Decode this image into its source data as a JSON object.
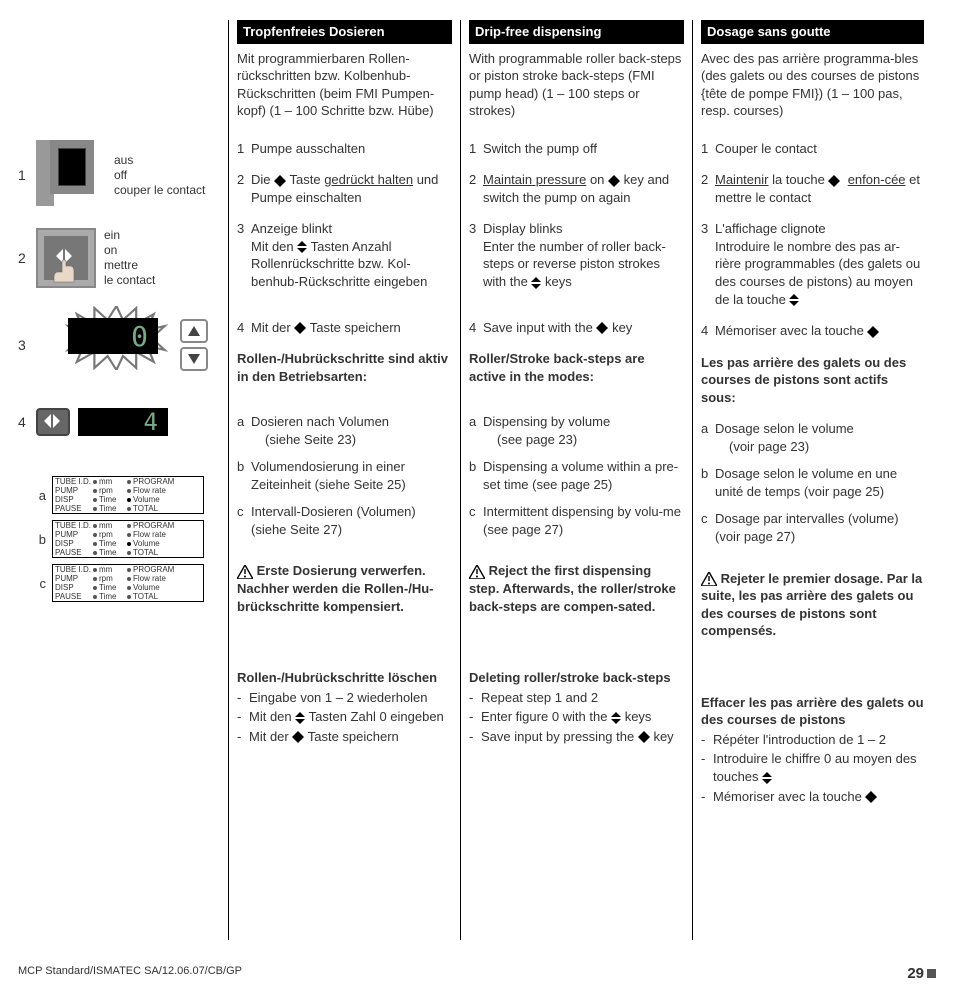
{
  "left": {
    "step1": {
      "l1": "aus",
      "l2": "off",
      "l3": "couper le contact"
    },
    "step2": {
      "l1": "ein",
      "l2": "on",
      "l3": "mettre",
      "l4": "le contact"
    },
    "lcd3": "0",
    "lcd4": "4",
    "panel": {
      "r1": [
        "TUBE I.D.",
        "mm",
        "PROGRAM"
      ],
      "r2": [
        "PUMP",
        "rpm",
        "Flow rate"
      ],
      "r3": [
        "DISP",
        "Time",
        "Volume"
      ],
      "r4": [
        "PAUSE",
        "Time",
        "TOTAL"
      ]
    }
  },
  "de": {
    "h": "Tropfenfreies Dosieren",
    "intro": "Mit programmierbaren Rollen-rückschritten bzw. Kolbenhub-Rückschritten (beim FMI Pumpen-kopf) (1 – 100 Schritte bzw. Hübe)",
    "s1": "Pumpe ausschalten",
    "s2a": "Die ",
    "s2b": " Taste ",
    "s2c": "gedrückt halten",
    "s2d": " und Pumpe einschalten",
    "s3a": "Anzeige blinkt",
    "s3b": "Mit den ",
    "s3c": " Tasten Anzahl Rollenrückschritte bzw. Kol-benhub-Rückschritte eingeben",
    "s4a": "Mit der ",
    "s4b": " Taste speichern",
    "modes": "Rollen-/Hubrückschritte sind aktiv in den Betriebsarten:",
    "a1": "Dosieren nach Volumen",
    "a2": "(siehe Seite 23)",
    "b1": "Volumendosierung in einer Zeiteinheit (siehe Seite 25)",
    "c1": "Intervall-Dosieren (Volumen) (siehe Seite 27)",
    "warn": " Erste Dosierung verwerfen. Nachher werden die Rollen-/Hu-brückschritte kompensiert.",
    "delh": "Rollen-/Hubrückschritte löschen",
    "d1": "Eingabe von 1 – 2 wiederholen",
    "d2a": "Mit den ",
    "d2b": " Tasten Zahl 0 eingeben",
    "d3a": "Mit der ",
    "d3b": " Taste speichern"
  },
  "en": {
    "h": "Drip-free dispensing",
    "intro": "With programmable roller back-steps or piston stroke back-steps (FMI pump head) (1 – 100 steps or strokes)",
    "s1": "Switch the pump off",
    "s2a": "Maintain pressure",
    "s2b": " on ",
    "s2c": " key and switch the pump on again",
    "s3a": "Display blinks",
    "s3b": "Enter the number of roller back-steps or reverse piston strokes with the ",
    "s3c": " keys",
    "s4a": "Save input with the ",
    "s4b": " key",
    "modes": "Roller/Stroke back-steps are active in the modes:",
    "a1": "Dispensing by volume",
    "a2": "(see page 23)",
    "b1": "Dispensing a volume within a pre-set time (see page 25)",
    "c1": "Intermittent dispensing by volu-me (see page 27)",
    "warn": " Reject the first dispensing step. Afterwards, the roller/stroke back-steps are compen-sated.",
    "delh": "Deleting roller/stroke back-steps",
    "d1": "Repeat step 1 and 2",
    "d2a": "Enter figure 0 with the ",
    "d2b": " keys",
    "d3a": "Save input by pressing the ",
    "d3b": " key"
  },
  "fr": {
    "h": "Dosage sans goutte",
    "intro": "Avec des pas arrière programma-bles (des galets ou des courses de pistons {tête de pompe FMI}) (1 – 100 pas, resp. courses)",
    "s1": "Couper le contact",
    "s2a": "Maintenir",
    "s2b": " la touche ",
    "s2c": "enfon-cée",
    "s2d": " et mettre le contact",
    "s3a": "L'affichage clignote",
    "s3b": "Introduire le nombre des pas ar-rière programmables (des galets ou des courses de pistons) au moyen de la touche ",
    "s4a": "Mémoriser avec la touche ",
    "modes": "Les pas arrière des galets ou des courses de pistons sont actifs sous:",
    "a1": "Dosage selon le volume",
    "a2": "(voir page 23)",
    "b1": "Dosage selon le volume en une unité de temps (voir page 25)",
    "c1": "Dosage par intervalles (volume) (voir page 27)",
    "warn": " Rejeter le premier dosage. Par la suite, les pas arrière des galets ou des courses de pistons sont compensés.",
    "delh": "Effacer les pas arrière des galets ou des courses de pistons",
    "d1": "Répéter l'introduction de 1 – 2",
    "d2a": "Introduire le chiffre 0 au moyen des touches ",
    "d3a": "Mémoriser avec la touche "
  },
  "footer": {
    "left": "MCP Standard/ISMATEC SA/12.06.07/CB/GP",
    "page": "29"
  }
}
